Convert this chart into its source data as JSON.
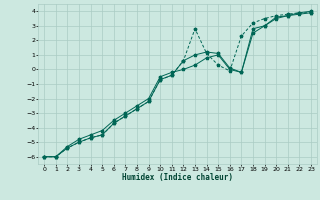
{
  "xlabel": "Humidex (Indice chaleur)",
  "bg_color": "#cce8e0",
  "grid_color": "#aaccc4",
  "line_color": "#006655",
  "xlim": [
    -0.5,
    23.5
  ],
  "ylim": [
    -6.5,
    4.5
  ],
  "xticks": [
    0,
    1,
    2,
    3,
    4,
    5,
    6,
    7,
    8,
    9,
    10,
    11,
    12,
    13,
    14,
    15,
    16,
    17,
    18,
    19,
    20,
    21,
    22,
    23
  ],
  "yticks": [
    -6,
    -5,
    -4,
    -3,
    -2,
    -1,
    0,
    1,
    2,
    3,
    4
  ],
  "line1_x": [
    0,
    1,
    2,
    3,
    4,
    5,
    6,
    7,
    8,
    9,
    10,
    11,
    12,
    13,
    14,
    15,
    16,
    17,
    18,
    19,
    20,
    21,
    22,
    23
  ],
  "line1_y": [
    -6,
    -6,
    -5.3,
    -4.8,
    -4.5,
    -4.2,
    -3.5,
    -3.0,
    -2.5,
    -2.0,
    -0.5,
    -0.2,
    0.0,
    0.3,
    0.8,
    1.0,
    0.0,
    -0.2,
    2.8,
    3.0,
    3.6,
    3.7,
    3.9,
    4.0
  ],
  "line2_x": [
    0,
    1,
    2,
    3,
    4,
    5,
    6,
    7,
    8,
    9,
    10,
    11,
    12,
    13,
    14,
    15,
    16,
    17,
    18,
    19,
    20,
    21,
    22,
    23
  ],
  "line2_y": [
    -6,
    -6,
    -5.4,
    -5.0,
    -4.7,
    -4.5,
    -3.7,
    -3.2,
    -2.7,
    -2.2,
    -0.7,
    -0.4,
    0.6,
    2.8,
    1.1,
    0.3,
    -0.1,
    2.3,
    3.2,
    3.5,
    3.7,
    3.8,
    3.9,
    3.9
  ],
  "line3_x": [
    0,
    1,
    2,
    3,
    4,
    5,
    6,
    7,
    8,
    9,
    10,
    11,
    12,
    13,
    14,
    15,
    16,
    17,
    18,
    19,
    20,
    21,
    22,
    23
  ],
  "line3_y": [
    -6,
    -6,
    -5.4,
    -5,
    -4.7,
    -4.5,
    -3.7,
    -3.2,
    -2.7,
    -2.2,
    -0.7,
    -0.4,
    0.6,
    1.0,
    1.2,
    1.1,
    0.1,
    -0.2,
    2.5,
    3.0,
    3.5,
    3.7,
    3.8,
    3.9
  ]
}
